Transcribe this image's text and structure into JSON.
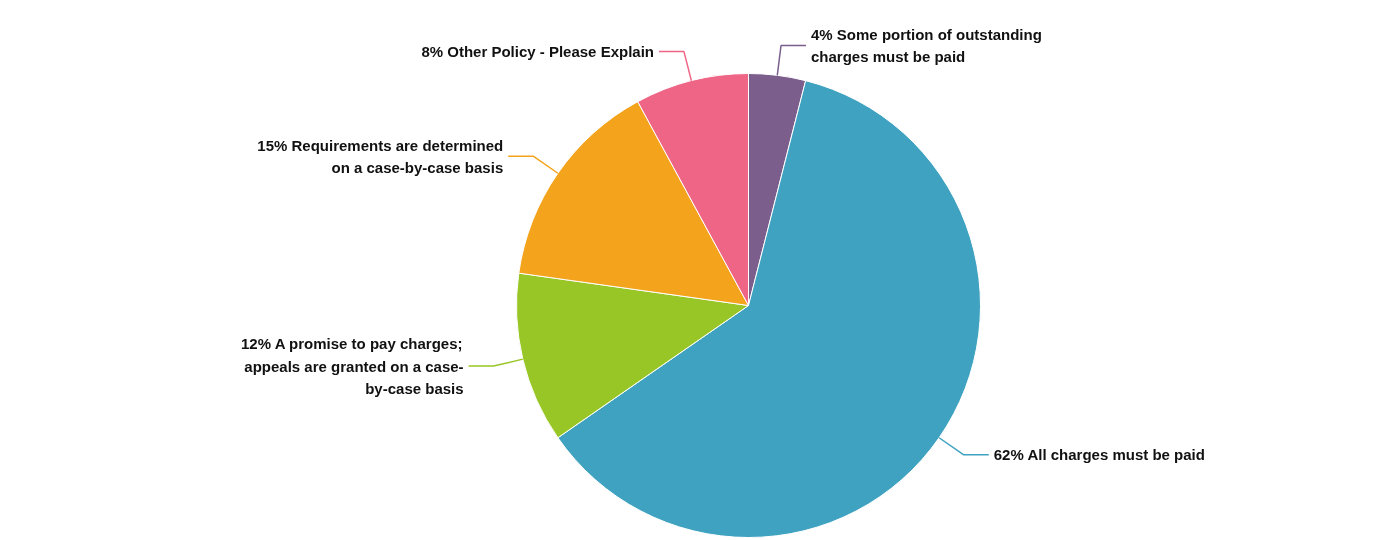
{
  "chart_data": {
    "type": "pie",
    "categories": [
      "4% Some portion of outstanding charges must be paid",
      "62% All charges must be paid",
      "12% A promise to pay charges; appeals are granted on a case-by-case basis",
      "15% Requirements are determined on a case-by-case basis",
      "8% Other Policy - Please Explain"
    ],
    "values": [
      4,
      62,
      12,
      15,
      8
    ],
    "colors": [
      "#7b5e8c",
      "#3ea2c0",
      "#98c626",
      "#f4a41c",
      "#ef6585"
    ]
  }
}
